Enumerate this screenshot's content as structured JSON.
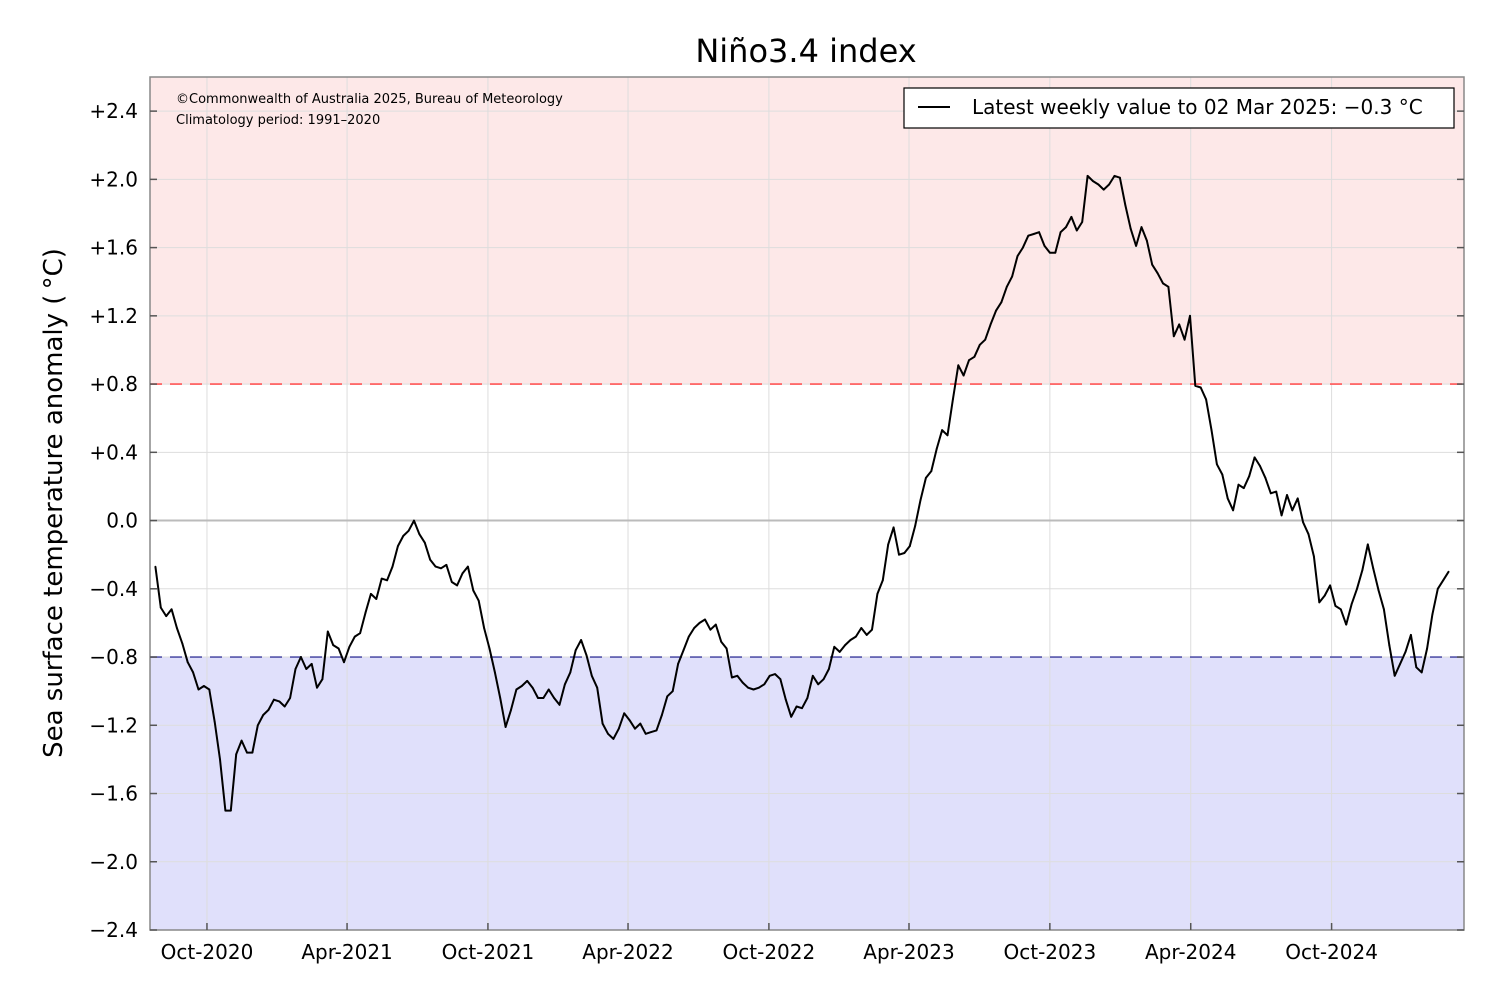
{
  "chart_data": {
    "type": "line",
    "title": "Niño3.4 index",
    "ylabel": "Sea surface temperature anomaly ( °C)",
    "xlabel": "",
    "credit_line1": "©Commonwealth of Australia 2025, Bureau of Meteorology",
    "credit_line2": "Climatology period: 1991–2020",
    "legend": {
      "label": "Latest weekly value to 02 Mar 2025: −0.3 °C",
      "placement": "top-right"
    },
    "ylim": [
      -2.4,
      2.6
    ],
    "xlim": [
      "2020-07-19",
      "2025-03-22"
    ],
    "y_ticks": [
      {
        "value": 2.4,
        "label": "+2.4"
      },
      {
        "value": 2.0,
        "label": "+2.0"
      },
      {
        "value": 1.6,
        "label": "+1.6"
      },
      {
        "value": 1.2,
        "label": "+1.2"
      },
      {
        "value": 0.8,
        "label": "+0.8"
      },
      {
        "value": 0.4,
        "label": "+0.4"
      },
      {
        "value": 0.0,
        "label": "0.0"
      },
      {
        "value": -0.4,
        "label": "−0.4"
      },
      {
        "value": -0.8,
        "label": "−0.8"
      },
      {
        "value": -1.2,
        "label": "−1.2"
      },
      {
        "value": -1.6,
        "label": "−1.6"
      },
      {
        "value": -2.0,
        "label": "−2.0"
      },
      {
        "value": -2.4,
        "label": "−2.4"
      }
    ],
    "x_ticks": [
      {
        "date": "2020-10-01",
        "label": "Oct-2020"
      },
      {
        "date": "2021-04-01",
        "label": "Apr-2021"
      },
      {
        "date": "2021-10-01",
        "label": "Oct-2021"
      },
      {
        "date": "2022-04-01",
        "label": "Apr-2022"
      },
      {
        "date": "2022-10-01",
        "label": "Oct-2022"
      },
      {
        "date": "2023-04-01",
        "label": "Apr-2023"
      },
      {
        "date": "2023-10-01",
        "label": "Oct-2023"
      },
      {
        "date": "2024-04-01",
        "label": "Apr-2024"
      },
      {
        "date": "2024-10-01",
        "label": "Oct-2024"
      }
    ],
    "thresholds": [
      {
        "value": 0.8,
        "color": "#ff5555",
        "style": "dashed"
      },
      {
        "value": -0.8,
        "color": "#5555aa",
        "style": "dashed"
      }
    ],
    "colors": {
      "el_nino_band": "#fde8e8",
      "la_nina_band": "#e0e0fb",
      "line": "#000000",
      "grid": "#dddddd",
      "zero_line": "#bbbbbb"
    },
    "grid": true,
    "series": [
      {
        "color": "#000000",
        "points": [
          [
            "2020-07-26",
            -0.27
          ],
          [
            "2020-08-02",
            -0.51
          ],
          [
            "2020-08-09",
            -0.56
          ],
          [
            "2020-08-16",
            -0.52
          ],
          [
            "2020-08-23",
            -0.63
          ],
          [
            "2020-08-30",
            -0.72
          ],
          [
            "2020-09-06",
            -0.83
          ],
          [
            "2020-09-13",
            -0.89
          ],
          [
            "2020-09-20",
            -0.99
          ],
          [
            "2020-09-27",
            -0.97
          ],
          [
            "2020-10-04",
            -0.99
          ],
          [
            "2020-10-11",
            -1.18
          ],
          [
            "2020-10-18",
            -1.4
          ],
          [
            "2020-10-25",
            -1.7
          ],
          [
            "2020-11-01",
            -1.7
          ],
          [
            "2020-11-08",
            -1.37
          ],
          [
            "2020-11-15",
            -1.29
          ],
          [
            "2020-11-22",
            -1.36
          ],
          [
            "2020-11-29",
            -1.36
          ],
          [
            "2020-12-06",
            -1.2
          ],
          [
            "2020-12-13",
            -1.14
          ],
          [
            "2020-12-20",
            -1.11
          ],
          [
            "2020-12-27",
            -1.05
          ],
          [
            "2021-01-03",
            -1.06
          ],
          [
            "2021-01-10",
            -1.09
          ],
          [
            "2021-01-17",
            -1.04
          ],
          [
            "2021-01-24",
            -0.87
          ],
          [
            "2021-01-31",
            -0.8
          ],
          [
            "2021-02-07",
            -0.87
          ],
          [
            "2021-02-14",
            -0.84
          ],
          [
            "2021-02-21",
            -0.98
          ],
          [
            "2021-02-28",
            -0.93
          ],
          [
            "2021-03-07",
            -0.65
          ],
          [
            "2021-03-14",
            -0.73
          ],
          [
            "2021-03-21",
            -0.75
          ],
          [
            "2021-03-28",
            -0.83
          ],
          [
            "2021-04-04",
            -0.74
          ],
          [
            "2021-04-11",
            -0.68
          ],
          [
            "2021-04-18",
            -0.66
          ],
          [
            "2021-04-25",
            -0.54
          ],
          [
            "2021-05-02",
            -0.43
          ],
          [
            "2021-05-09",
            -0.46
          ],
          [
            "2021-05-16",
            -0.34
          ],
          [
            "2021-05-23",
            -0.35
          ],
          [
            "2021-05-30",
            -0.27
          ],
          [
            "2021-06-06",
            -0.15
          ],
          [
            "2021-06-13",
            -0.09
          ],
          [
            "2021-06-20",
            -0.06
          ],
          [
            "2021-06-27",
            0.0
          ],
          [
            "2021-07-04",
            -0.08
          ],
          [
            "2021-07-11",
            -0.13
          ],
          [
            "2021-07-18",
            -0.23
          ],
          [
            "2021-07-25",
            -0.27
          ],
          [
            "2021-08-01",
            -0.28
          ],
          [
            "2021-08-08",
            -0.26
          ],
          [
            "2021-08-15",
            -0.36
          ],
          [
            "2021-08-22",
            -0.38
          ],
          [
            "2021-08-29",
            -0.31
          ],
          [
            "2021-09-05",
            -0.27
          ],
          [
            "2021-09-12",
            -0.41
          ],
          [
            "2021-09-19",
            -0.47
          ],
          [
            "2021-09-26",
            -0.63
          ],
          [
            "2021-10-03",
            -0.75
          ],
          [
            "2021-10-10",
            -0.89
          ],
          [
            "2021-10-17",
            -1.04
          ],
          [
            "2021-10-24",
            -1.21
          ],
          [
            "2021-10-31",
            -1.11
          ],
          [
            "2021-11-07",
            -0.99
          ],
          [
            "2021-11-14",
            -0.97
          ],
          [
            "2021-11-21",
            -0.94
          ],
          [
            "2021-11-28",
            -0.98
          ],
          [
            "2021-12-05",
            -1.04
          ],
          [
            "2021-12-12",
            -1.04
          ],
          [
            "2021-12-19",
            -0.99
          ],
          [
            "2021-12-26",
            -1.04
          ],
          [
            "2022-01-02",
            -1.08
          ],
          [
            "2022-01-09",
            -0.96
          ],
          [
            "2022-01-16",
            -0.89
          ],
          [
            "2022-01-23",
            -0.76
          ],
          [
            "2022-01-30",
            -0.7
          ],
          [
            "2022-02-06",
            -0.79
          ],
          [
            "2022-02-13",
            -0.91
          ],
          [
            "2022-02-20",
            -0.98
          ],
          [
            "2022-02-27",
            -1.19
          ],
          [
            "2022-03-06",
            -1.25
          ],
          [
            "2022-03-13",
            -1.28
          ],
          [
            "2022-03-20",
            -1.22
          ],
          [
            "2022-03-27",
            -1.13
          ],
          [
            "2022-04-03",
            -1.17
          ],
          [
            "2022-04-10",
            -1.22
          ],
          [
            "2022-04-17",
            -1.19
          ],
          [
            "2022-04-24",
            -1.25
          ],
          [
            "2022-05-01",
            -1.24
          ],
          [
            "2022-05-08",
            -1.23
          ],
          [
            "2022-05-15",
            -1.14
          ],
          [
            "2022-05-22",
            -1.03
          ],
          [
            "2022-05-29",
            -1.0
          ],
          [
            "2022-06-05",
            -0.84
          ],
          [
            "2022-06-12",
            -0.76
          ],
          [
            "2022-06-19",
            -0.68
          ],
          [
            "2022-06-26",
            -0.63
          ],
          [
            "2022-07-03",
            -0.6
          ],
          [
            "2022-07-10",
            -0.58
          ],
          [
            "2022-07-17",
            -0.64
          ],
          [
            "2022-07-24",
            -0.61
          ],
          [
            "2022-07-31",
            -0.71
          ],
          [
            "2022-08-07",
            -0.75
          ],
          [
            "2022-08-14",
            -0.92
          ],
          [
            "2022-08-21",
            -0.91
          ],
          [
            "2022-08-28",
            -0.95
          ],
          [
            "2022-09-04",
            -0.98
          ],
          [
            "2022-09-11",
            -0.99
          ],
          [
            "2022-09-18",
            -0.98
          ],
          [
            "2022-09-25",
            -0.96
          ],
          [
            "2022-10-02",
            -0.91
          ],
          [
            "2022-10-09",
            -0.9
          ],
          [
            "2022-10-16",
            -0.93
          ],
          [
            "2022-10-23",
            -1.05
          ],
          [
            "2022-10-30",
            -1.15
          ],
          [
            "2022-11-06",
            -1.09
          ],
          [
            "2022-11-13",
            -1.1
          ],
          [
            "2022-11-20",
            -1.04
          ],
          [
            "2022-11-27",
            -0.91
          ],
          [
            "2022-12-04",
            -0.96
          ],
          [
            "2022-12-11",
            -0.93
          ],
          [
            "2022-12-18",
            -0.87
          ],
          [
            "2022-12-25",
            -0.74
          ],
          [
            "2023-01-01",
            -0.77
          ],
          [
            "2023-01-08",
            -0.73
          ],
          [
            "2023-01-15",
            -0.7
          ],
          [
            "2023-01-22",
            -0.68
          ],
          [
            "2023-01-29",
            -0.63
          ],
          [
            "2023-02-05",
            -0.67
          ],
          [
            "2023-02-12",
            -0.64
          ],
          [
            "2023-02-19",
            -0.43
          ],
          [
            "2023-02-26",
            -0.35
          ],
          [
            "2023-03-05",
            -0.14
          ],
          [
            "2023-03-12",
            -0.04
          ],
          [
            "2023-03-19",
            -0.2
          ],
          [
            "2023-03-26",
            -0.19
          ],
          [
            "2023-04-02",
            -0.15
          ],
          [
            "2023-04-09",
            -0.03
          ],
          [
            "2023-04-16",
            0.12
          ],
          [
            "2023-04-23",
            0.25
          ],
          [
            "2023-04-30",
            0.29
          ],
          [
            "2023-05-07",
            0.42
          ],
          [
            "2023-05-14",
            0.53
          ],
          [
            "2023-05-21",
            0.5
          ],
          [
            "2023-05-28",
            0.71
          ],
          [
            "2023-06-04",
            0.91
          ],
          [
            "2023-06-11",
            0.85
          ],
          [
            "2023-06-18",
            0.94
          ],
          [
            "2023-06-25",
            0.96
          ],
          [
            "2023-07-02",
            1.03
          ],
          [
            "2023-07-09",
            1.06
          ],
          [
            "2023-07-16",
            1.15
          ],
          [
            "2023-07-23",
            1.23
          ],
          [
            "2023-07-30",
            1.28
          ],
          [
            "2023-08-06",
            1.37
          ],
          [
            "2023-08-13",
            1.43
          ],
          [
            "2023-08-20",
            1.55
          ],
          [
            "2023-08-27",
            1.6
          ],
          [
            "2023-09-03",
            1.67
          ],
          [
            "2023-09-10",
            1.68
          ],
          [
            "2023-09-17",
            1.69
          ],
          [
            "2023-09-24",
            1.61
          ],
          [
            "2023-10-01",
            1.57
          ],
          [
            "2023-10-08",
            1.57
          ],
          [
            "2023-10-15",
            1.69
          ],
          [
            "2023-10-22",
            1.72
          ],
          [
            "2023-10-29",
            1.78
          ],
          [
            "2023-11-05",
            1.7
          ],
          [
            "2023-11-12",
            1.75
          ],
          [
            "2023-11-19",
            2.02
          ],
          [
            "2023-11-26",
            1.99
          ],
          [
            "2023-12-03",
            1.97
          ],
          [
            "2023-12-10",
            1.94
          ],
          [
            "2023-12-17",
            1.97
          ],
          [
            "2023-12-24",
            2.02
          ],
          [
            "2023-12-31",
            2.01
          ],
          [
            "2024-01-07",
            1.85
          ],
          [
            "2024-01-14",
            1.71
          ],
          [
            "2024-01-21",
            1.61
          ],
          [
            "2024-01-28",
            1.72
          ],
          [
            "2024-02-04",
            1.64
          ],
          [
            "2024-02-11",
            1.5
          ],
          [
            "2024-02-18",
            1.45
          ],
          [
            "2024-02-25",
            1.39
          ],
          [
            "2024-03-03",
            1.37
          ],
          [
            "2024-03-10",
            1.08
          ],
          [
            "2024-03-17",
            1.15
          ],
          [
            "2024-03-24",
            1.06
          ],
          [
            "2024-03-31",
            1.2
          ],
          [
            "2024-04-07",
            0.79
          ],
          [
            "2024-04-14",
            0.78
          ],
          [
            "2024-04-21",
            0.71
          ],
          [
            "2024-04-28",
            0.53
          ],
          [
            "2024-05-05",
            0.33
          ],
          [
            "2024-05-12",
            0.27
          ],
          [
            "2024-05-19",
            0.13
          ],
          [
            "2024-05-26",
            0.06
          ],
          [
            "2024-06-02",
            0.21
          ],
          [
            "2024-06-09",
            0.19
          ],
          [
            "2024-06-16",
            0.26
          ],
          [
            "2024-06-23",
            0.37
          ],
          [
            "2024-06-30",
            0.32
          ],
          [
            "2024-07-07",
            0.25
          ],
          [
            "2024-07-14",
            0.16
          ],
          [
            "2024-07-21",
            0.17
          ],
          [
            "2024-07-28",
            0.03
          ],
          [
            "2024-08-04",
            0.15
          ],
          [
            "2024-08-11",
            0.06
          ],
          [
            "2024-08-18",
            0.13
          ],
          [
            "2024-08-25",
            -0.01
          ],
          [
            "2024-09-01",
            -0.08
          ],
          [
            "2024-09-08",
            -0.21
          ],
          [
            "2024-09-15",
            -0.48
          ],
          [
            "2024-09-22",
            -0.44
          ],
          [
            "2024-09-29",
            -0.38
          ],
          [
            "2024-10-06",
            -0.5
          ],
          [
            "2024-10-13",
            -0.52
          ],
          [
            "2024-10-20",
            -0.61
          ],
          [
            "2024-10-27",
            -0.49
          ],
          [
            "2024-11-03",
            -0.4
          ],
          [
            "2024-11-10",
            -0.29
          ],
          [
            "2024-11-17",
            -0.14
          ],
          [
            "2024-11-24",
            -0.28
          ],
          [
            "2024-12-01",
            -0.41
          ],
          [
            "2024-12-08",
            -0.52
          ],
          [
            "2024-12-15",
            -0.73
          ],
          [
            "2024-12-22",
            -0.91
          ],
          [
            "2024-12-29",
            -0.84
          ],
          [
            "2025-01-05",
            -0.77
          ],
          [
            "2025-01-12",
            -0.67
          ],
          [
            "2025-01-19",
            -0.86
          ],
          [
            "2025-01-26",
            -0.89
          ],
          [
            "2025-02-02",
            -0.75
          ],
          [
            "2025-02-09",
            -0.55
          ],
          [
            "2025-02-16",
            -0.4
          ],
          [
            "2025-02-23",
            -0.35
          ],
          [
            "2025-03-02",
            -0.3
          ]
        ]
      }
    ]
  }
}
